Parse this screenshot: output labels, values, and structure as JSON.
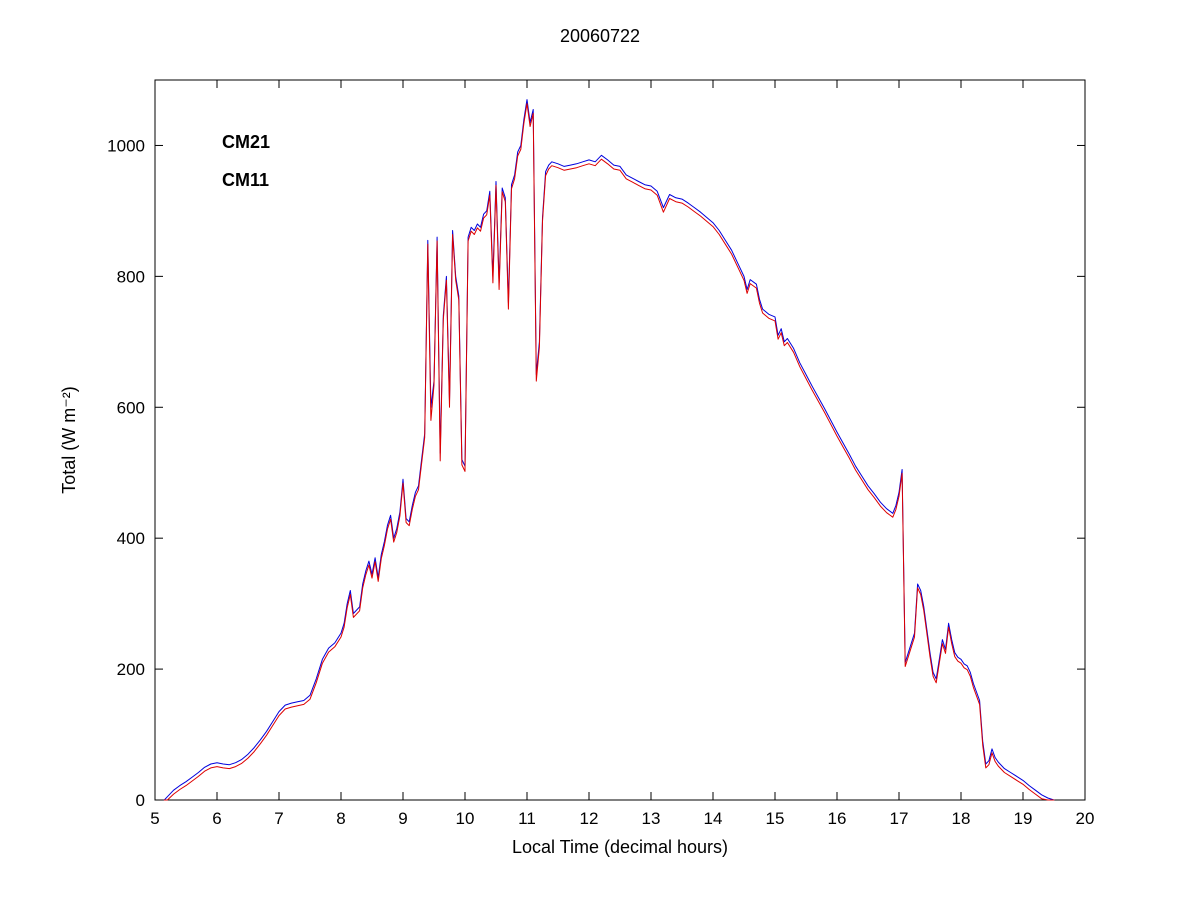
{
  "chart_data": {
    "type": "line",
    "title": "20060722",
    "xlabel": "Local Time (decimal hours)",
    "ylabel": "Total (W m⁻²)",
    "xlim": [
      5,
      20
    ],
    "ylim": [
      0,
      1100
    ],
    "xticks": [
      5,
      6,
      7,
      8,
      9,
      10,
      11,
      12,
      13,
      14,
      15,
      16,
      17,
      18,
      19,
      20
    ],
    "yticks": [
      0,
      200,
      400,
      600,
      800,
      1000
    ],
    "grid": false,
    "legend_position": "upper-left-text",
    "axis_color": "#000000",
    "background": "#ffffff",
    "x": [
      5.15,
      5.2,
      5.3,
      5.4,
      5.5,
      5.6,
      5.7,
      5.8,
      5.9,
      6.0,
      6.1,
      6.2,
      6.3,
      6.4,
      6.5,
      6.6,
      6.7,
      6.8,
      6.9,
      7.0,
      7.1,
      7.2,
      7.3,
      7.4,
      7.5,
      7.6,
      7.7,
      7.8,
      7.9,
      8.0,
      8.05,
      8.1,
      8.15,
      8.2,
      8.3,
      8.35,
      8.4,
      8.45,
      8.5,
      8.55,
      8.6,
      8.65,
      8.7,
      8.75,
      8.8,
      8.85,
      8.9,
      8.95,
      9.0,
      9.05,
      9.1,
      9.15,
      9.2,
      9.25,
      9.3,
      9.35,
      9.4,
      9.45,
      9.5,
      9.55,
      9.6,
      9.65,
      9.7,
      9.75,
      9.8,
      9.85,
      9.9,
      9.95,
      10.0,
      10.05,
      10.1,
      10.15,
      10.2,
      10.25,
      10.3,
      10.35,
      10.4,
      10.45,
      10.5,
      10.55,
      10.6,
      10.65,
      10.7,
      10.75,
      10.8,
      10.85,
      10.9,
      10.95,
      11.0,
      11.05,
      11.1,
      11.15,
      11.2,
      11.25,
      11.3,
      11.35,
      11.4,
      11.5,
      11.6,
      11.7,
      11.8,
      11.9,
      12.0,
      12.1,
      12.2,
      12.3,
      12.4,
      12.5,
      12.6,
      12.7,
      12.8,
      12.9,
      13.0,
      13.1,
      13.2,
      13.3,
      13.4,
      13.5,
      13.6,
      13.7,
      13.8,
      13.9,
      14.0,
      14.1,
      14.2,
      14.3,
      14.4,
      14.5,
      14.55,
      14.6,
      14.7,
      14.75,
      14.8,
      14.9,
      15.0,
      15.05,
      15.1,
      15.15,
      15.2,
      15.3,
      15.4,
      15.5,
      15.6,
      15.7,
      15.8,
      15.9,
      16.0,
      16.1,
      16.2,
      16.3,
      16.4,
      16.5,
      16.6,
      16.7,
      16.8,
      16.9,
      16.95,
      17.0,
      17.05,
      17.1,
      17.15,
      17.2,
      17.25,
      17.3,
      17.35,
      17.4,
      17.45,
      17.5,
      17.55,
      17.6,
      17.65,
      17.7,
      17.75,
      17.8,
      17.85,
      17.9,
      17.95,
      18.0,
      18.05,
      18.1,
      18.15,
      18.2,
      18.25,
      18.3,
      18.35,
      18.4,
      18.45,
      18.5,
      18.55,
      18.6,
      18.7,
      18.8,
      18.9,
      19.0,
      19.1,
      19.2,
      19.3,
      19.4,
      19.5
    ],
    "series": [
      {
        "name": "CM21",
        "color": "#0000DD",
        "values": [
          0,
          5,
          15,
          22,
          28,
          35,
          42,
          50,
          55,
          57,
          55,
          54,
          57,
          62,
          70,
          80,
          92,
          105,
          120,
          135,
          145,
          148,
          150,
          152,
          160,
          185,
          215,
          232,
          240,
          255,
          270,
          300,
          320,
          285,
          295,
          330,
          350,
          365,
          345,
          370,
          340,
          375,
          395,
          420,
          435,
          400,
          415,
          440,
          490,
          430,
          425,
          450,
          470,
          480,
          520,
          560,
          855,
          600,
          640,
          860,
          530,
          740,
          800,
          610,
          870,
          800,
          770,
          520,
          510,
          860,
          875,
          870,
          880,
          875,
          895,
          900,
          930,
          800,
          945,
          790,
          935,
          920,
          760,
          940,
          955,
          990,
          1000,
          1040,
          1070,
          1035,
          1055,
          650,
          700,
          890,
          960,
          970,
          975,
          972,
          968,
          970,
          972,
          975,
          978,
          975,
          985,
          978,
          970,
          968,
          955,
          950,
          945,
          940,
          938,
          930,
          905,
          925,
          920,
          918,
          912,
          905,
          898,
          890,
          882,
          870,
          855,
          840,
          820,
          800,
          780,
          795,
          788,
          765,
          750,
          742,
          738,
          710,
          720,
          700,
          705,
          690,
          668,
          650,
          632,
          615,
          598,
          580,
          562,
          545,
          528,
          510,
          495,
          480,
          468,
          455,
          445,
          438,
          450,
          470,
          505,
          210,
          225,
          240,
          255,
          330,
          320,
          295,
          260,
          225,
          195,
          185,
          215,
          245,
          230,
          270,
          245,
          225,
          218,
          215,
          208,
          205,
          195,
          178,
          165,
          152,
          90,
          55,
          60,
          78,
          65,
          58,
          48,
          42,
          36,
          30,
          22,
          15,
          8,
          3,
          0
        ]
      },
      {
        "name": "CM11",
        "color": "#DD0000",
        "values": [
          0,
          0,
          9,
          16,
          22,
          29,
          36,
          44,
          49,
          51,
          49,
          48,
          51,
          56,
          64,
          74,
          86,
          99,
          114,
          129,
          139,
          142,
          144,
          146,
          154,
          179,
          209,
          226,
          234,
          249,
          264,
          294,
          314,
          279,
          289,
          324,
          344,
          359,
          339,
          364,
          334,
          369,
          389,
          414,
          429,
          394,
          409,
          434,
          484,
          424,
          419,
          444,
          464,
          474,
          514,
          554,
          849,
          580,
          634,
          854,
          518,
          734,
          794,
          600,
          864,
          794,
          764,
          512,
          502,
          854,
          869,
          864,
          874,
          869,
          889,
          894,
          924,
          790,
          939,
          780,
          929,
          914,
          750,
          934,
          949,
          984,
          994,
          1034,
          1064,
          1029,
          1049,
          640,
          692,
          884,
          954,
          964,
          969,
          966,
          962,
          964,
          966,
          969,
          972,
          969,
          979,
          972,
          964,
          962,
          949,
          944,
          939,
          934,
          932,
          924,
          898,
          919,
          914,
          912,
          906,
          899,
          892,
          884,
          876,
          864,
          849,
          834,
          814,
          794,
          774,
          789,
          782,
          759,
          744,
          736,
          732,
          704,
          714,
          694,
          699,
          684,
          662,
          644,
          626,
          609,
          592,
          574,
          556,
          539,
          522,
          504,
          489,
          474,
          462,
          449,
          439,
          432,
          444,
          464,
          499,
          204,
          219,
          234,
          249,
          324,
          314,
          289,
          254,
          219,
          189,
          179,
          209,
          239,
          224,
          264,
          239,
          219,
          212,
          209,
          202,
          199,
          189,
          172,
          159,
          146,
          84,
          49,
          54,
          72,
          59,
          52,
          42,
          36,
          30,
          24,
          16,
          9,
          2,
          0,
          0
        ]
      }
    ]
  }
}
